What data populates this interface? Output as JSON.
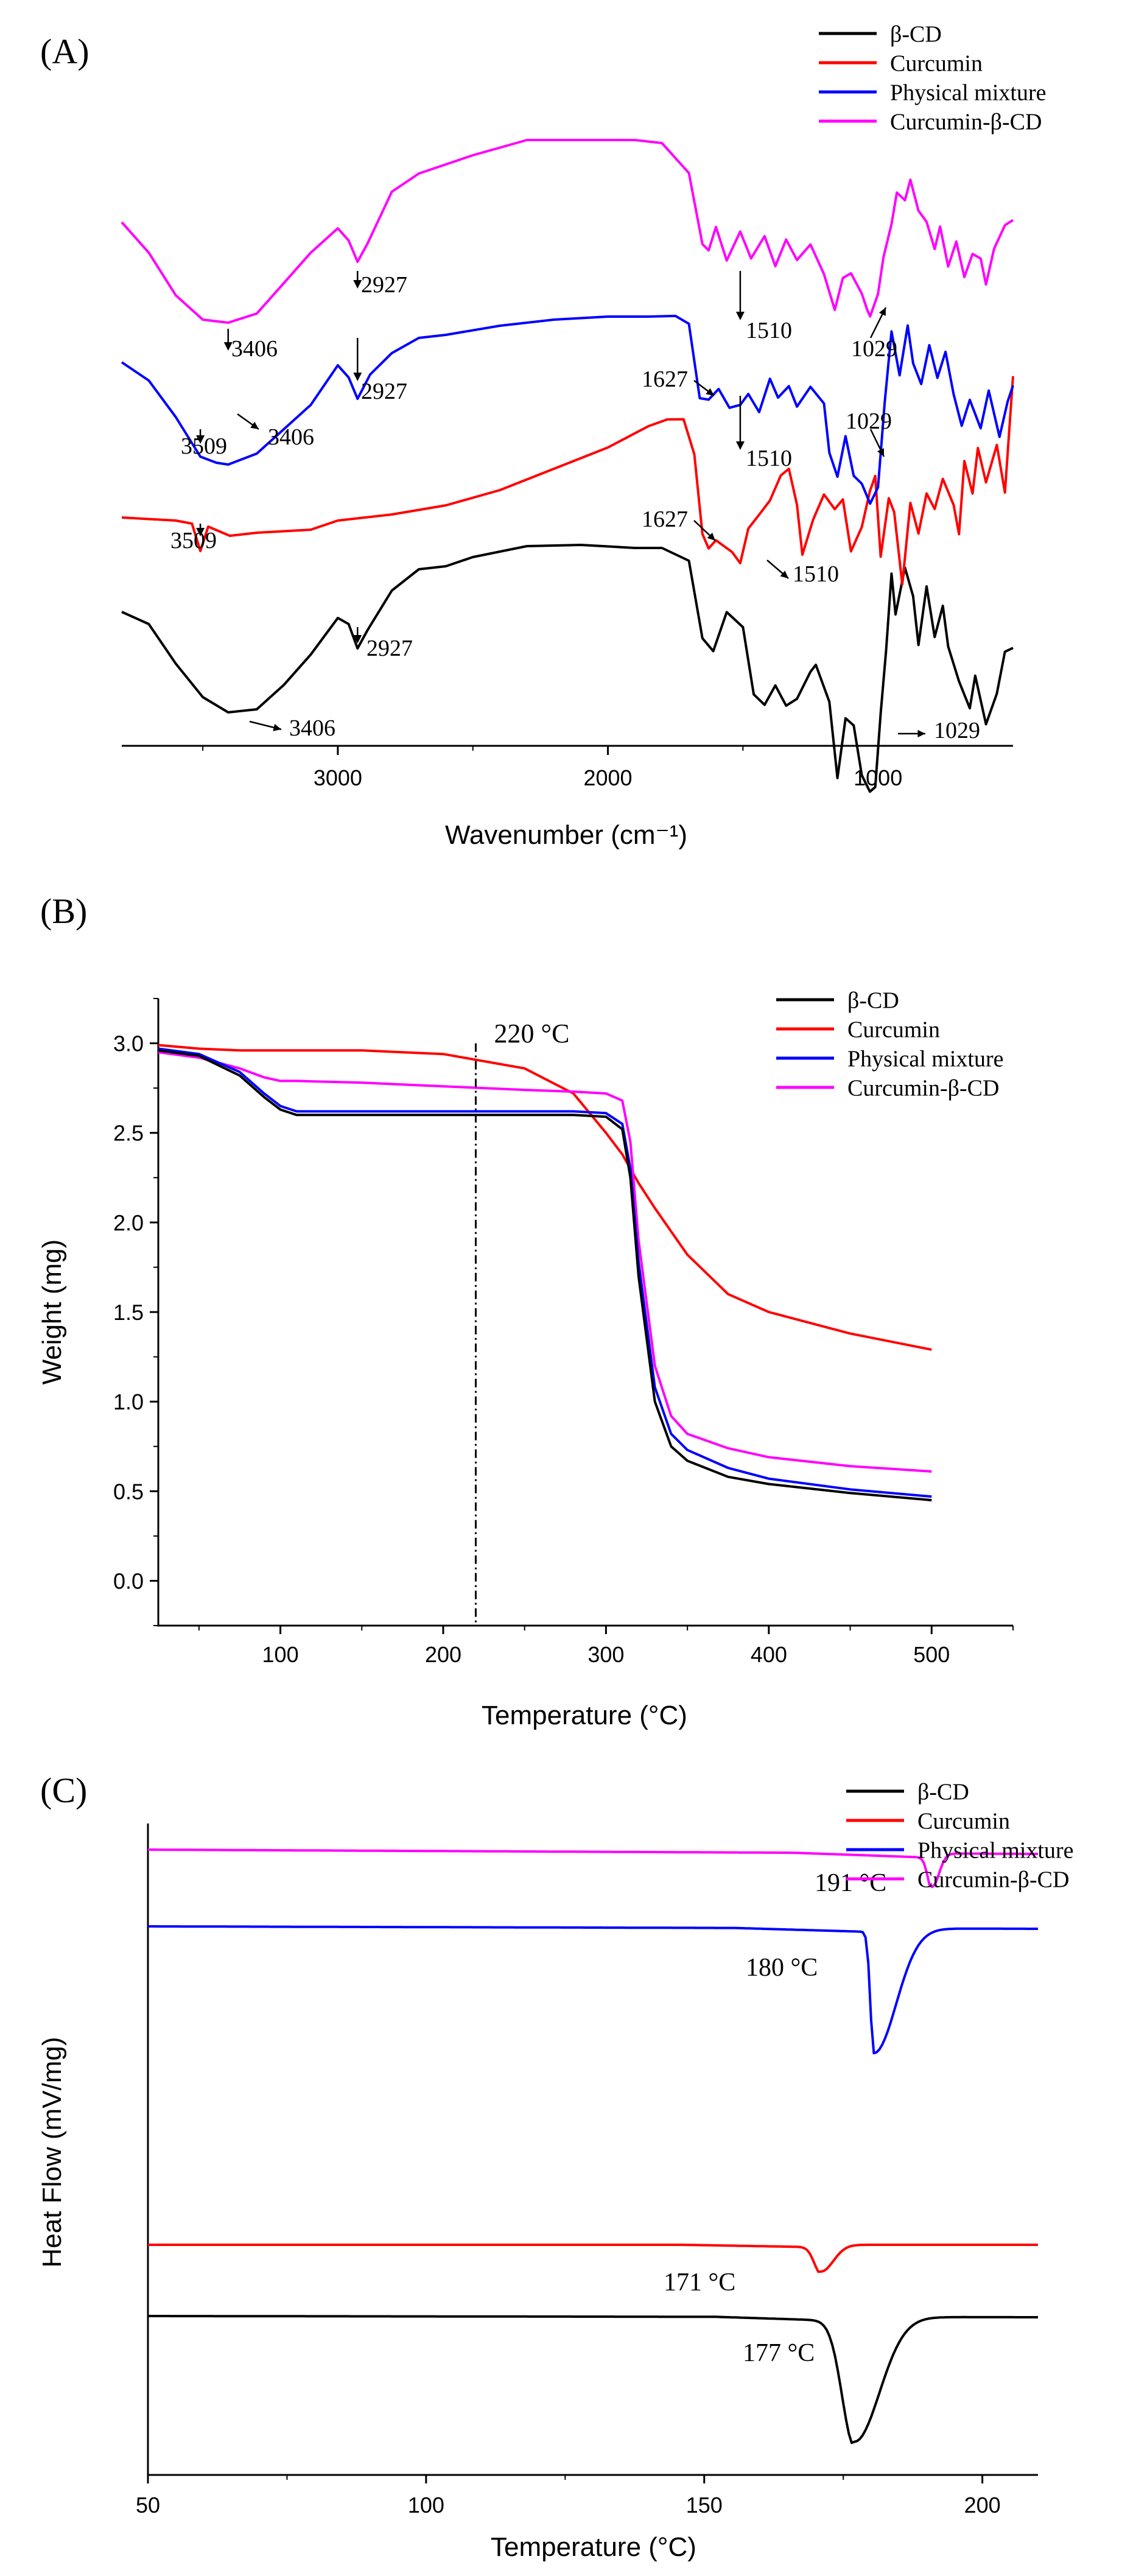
{
  "figure": {
    "series_names": [
      "β-CD",
      "Curcumin",
      "Physical mixture",
      "Curcumin-β-CD"
    ],
    "series_colors": [
      "#000000",
      "#ff0000",
      "#0000ff",
      "#ff00ff"
    ]
  },
  "chart_data": [
    {
      "panel": "(A)",
      "type": "line",
      "title": "",
      "xlabel": "Wavenumber (cm⁻¹)",
      "ylabel": "",
      "xlim": [
        3800,
        500
      ],
      "xticks": [
        3000,
        2000,
        1000
      ],
      "offset_stacked": true,
      "legend": "top-right",
      "series": [
        {
          "name": "β-CD",
          "color": "#000000"
        },
        {
          "name": "Curcumin",
          "color": "#ff0000"
        },
        {
          "name": "Physical mixture",
          "color": "#0000ff"
        },
        {
          "name": "Curcumin-β-CD",
          "color": "#ff00ff"
        }
      ],
      "annotations": [
        {
          "series": "Curcumin-β-CD",
          "label": "3406",
          "x": 3406
        },
        {
          "series": "Curcumin-β-CD",
          "label": "2927",
          "x": 2927
        },
        {
          "series": "Curcumin-β-CD",
          "label": "1510",
          "x": 1510
        },
        {
          "series": "Curcumin-β-CD",
          "label": "1029",
          "x": 1029
        },
        {
          "series": "Physical mixture",
          "label": "1627",
          "x": 1627
        },
        {
          "series": "Physical mixture",
          "label": "2927",
          "x": 2927
        },
        {
          "series": "Physical mixture",
          "label": "3509",
          "x": 3509
        },
        {
          "series": "Physical mixture",
          "label": "3406",
          "x": 3406
        },
        {
          "series": "Physical mixture",
          "label": "1510",
          "x": 1510
        },
        {
          "series": "Physical mixture",
          "label": "1029",
          "x": 1029
        },
        {
          "series": "Curcumin",
          "label": "1627",
          "x": 1627
        },
        {
          "series": "Curcumin",
          "label": "1510",
          "x": 1510
        },
        {
          "series": "Curcumin",
          "label": "3509",
          "x": 3509
        },
        {
          "series": "β-CD",
          "label": "2927",
          "x": 2927
        },
        {
          "series": "β-CD",
          "label": "3406",
          "x": 3406
        },
        {
          "series": "β-CD",
          "label": "1029",
          "x": 1029
        }
      ]
    },
    {
      "panel": "(B)",
      "type": "line",
      "title": "",
      "xlabel": "Temperature (°C)",
      "ylabel": "Weight (mg)",
      "xlim": [
        25,
        550
      ],
      "ylim": [
        -0.25,
        3.25
      ],
      "xticks": [
        100,
        200,
        300,
        400,
        500
      ],
      "yticks": [
        0.0,
        0.5,
        1.0,
        1.5,
        2.0,
        2.5,
        3.0
      ],
      "legend": "top-right",
      "reference_line": {
        "x": 220,
        "label": "220 °C"
      },
      "x": [
        25,
        50,
        75,
        90,
        100,
        110,
        150,
        200,
        250,
        280,
        300,
        310,
        315,
        320,
        330,
        340,
        350,
        375,
        400,
        450,
        500
      ],
      "series": [
        {
          "name": "β-CD",
          "color": "#000000",
          "values": [
            2.96,
            2.93,
            2.82,
            2.7,
            2.63,
            2.6,
            2.6,
            2.6,
            2.6,
            2.6,
            2.59,
            2.52,
            2.25,
            1.7,
            1.0,
            0.75,
            0.67,
            0.58,
            0.54,
            0.49,
            0.45
          ]
        },
        {
          "name": "Curcumin",
          "color": "#ff0000",
          "values": [
            2.99,
            2.97,
            2.96,
            2.96,
            2.96,
            2.96,
            2.96,
            2.94,
            2.86,
            2.72,
            2.5,
            2.38,
            2.3,
            2.22,
            2.08,
            1.95,
            1.82,
            1.6,
            1.5,
            1.38,
            1.29
          ]
        },
        {
          "name": "Physical mixture",
          "color": "#0000ff",
          "values": [
            2.97,
            2.94,
            2.84,
            2.72,
            2.65,
            2.62,
            2.62,
            2.62,
            2.62,
            2.62,
            2.61,
            2.55,
            2.3,
            1.78,
            1.08,
            0.82,
            0.73,
            0.63,
            0.57,
            0.51,
            0.47
          ]
        },
        {
          "name": "Curcumin-β-CD",
          "color": "#ff00ff",
          "values": [
            2.95,
            2.92,
            2.86,
            2.81,
            2.79,
            2.79,
            2.78,
            2.76,
            2.74,
            2.73,
            2.72,
            2.68,
            2.45,
            1.9,
            1.2,
            0.92,
            0.82,
            0.74,
            0.69,
            0.64,
            0.61
          ]
        }
      ]
    },
    {
      "panel": "(C)",
      "type": "line",
      "title": "",
      "xlabel": "Temperature (°C)",
      "ylabel": "Heat Flow (mV/mg)",
      "xlim": [
        50,
        210
      ],
      "xticks": [
        50,
        100,
        150,
        200
      ],
      "offset_stacked": true,
      "legend": "top-right",
      "series": [
        {
          "name": "β-CD",
          "color": "#000000",
          "peak_label": "177 °C",
          "peak_x": 177
        },
        {
          "name": "Curcumin",
          "color": "#ff0000",
          "peak_label": "171 °C",
          "peak_x": 171
        },
        {
          "name": "Physical mixture",
          "color": "#0000ff",
          "peak_label": "180 °C",
          "peak_x": 180.5
        },
        {
          "name": "Curcumin-β-CD",
          "color": "#ff00ff",
          "peak_label": "191 °C",
          "peak_x": 191
        }
      ]
    }
  ]
}
